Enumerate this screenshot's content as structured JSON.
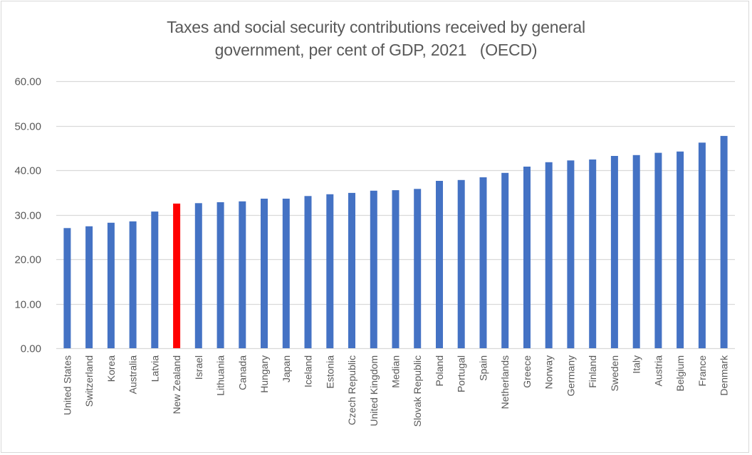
{
  "chart_data": {
    "type": "bar",
    "title": "Taxes and social security contributions received by general government, per cent of GDP, 2021   (OECD)",
    "title_lines": [
      "Taxes and social security contributions received by general",
      "government, per cent of GDP, 2021   (OECD)"
    ],
    "xlabel": "",
    "ylabel": "",
    "ylim": [
      0,
      60
    ],
    "yticks": [
      0,
      10,
      20,
      30,
      40,
      50,
      60
    ],
    "ytick_labels": [
      "0.00",
      "10.00",
      "20.00",
      "30.00",
      "40.00",
      "50.00",
      "60.00"
    ],
    "grid": true,
    "legend": "none",
    "categories": [
      "United States",
      "Switzerland",
      "Korea",
      "Australia",
      "Latvia",
      "New Zealand",
      "Israel",
      "Lithuania",
      "Canada",
      "Hungary",
      "Japan",
      "Iceland",
      "Estonia",
      "Czech Republic",
      "United Kingdom",
      "Median",
      "Slovak Republic",
      "Poland",
      "Portugal",
      "Spain",
      "Netherlands",
      "Greece",
      "Norway",
      "Germany",
      "Finland",
      "Sweden",
      "Italy",
      "Austria",
      "Belgium",
      "France",
      "Denmark"
    ],
    "values": [
      27.0,
      27.4,
      28.2,
      28.5,
      30.7,
      32.5,
      32.6,
      32.8,
      33.0,
      33.6,
      33.6,
      34.2,
      34.6,
      34.9,
      35.4,
      35.5,
      35.8,
      37.6,
      37.8,
      38.4,
      39.4,
      40.8,
      41.8,
      42.2,
      42.4,
      43.2,
      43.4,
      43.9,
      44.2,
      46.2,
      47.7
    ],
    "highlight": "New Zealand",
    "colors": {
      "bar": "#4472c4",
      "highlight": "#ff0000",
      "grid": "#d9d9d9",
      "text": "#595959"
    }
  }
}
